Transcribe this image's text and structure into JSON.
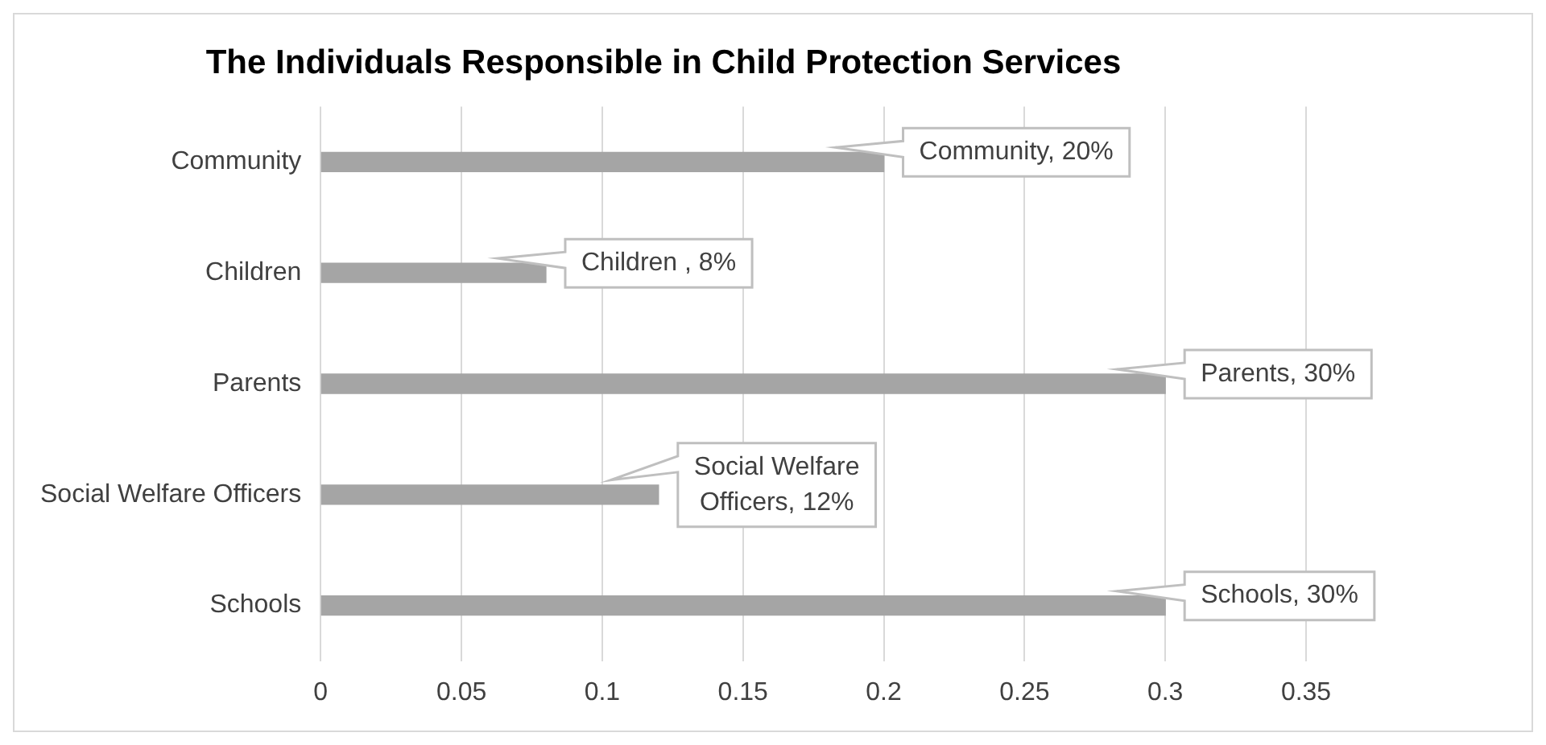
{
  "chart_data": {
    "type": "bar",
    "orientation": "horizontal",
    "title": "The Individuals Responsible in Child Protection Services",
    "categories": [
      "Community",
      "Children",
      "Parents",
      "Social Welfare Officers",
      "Schools"
    ],
    "values": [
      0.2,
      0.08,
      0.3,
      0.12,
      0.3
    ],
    "value_labels": [
      "Community, 20%",
      "Children , 8%",
      "Parents, 30%",
      "Social Welfare Officers, 12%",
      "Schools, 30%"
    ],
    "color": "#a5a5a5",
    "xlim": [
      0,
      0.35
    ],
    "xticks": [
      0,
      0.05,
      0.1,
      0.15,
      0.2,
      0.25,
      0.3,
      0.35
    ],
    "grid": "x",
    "legend": false
  }
}
